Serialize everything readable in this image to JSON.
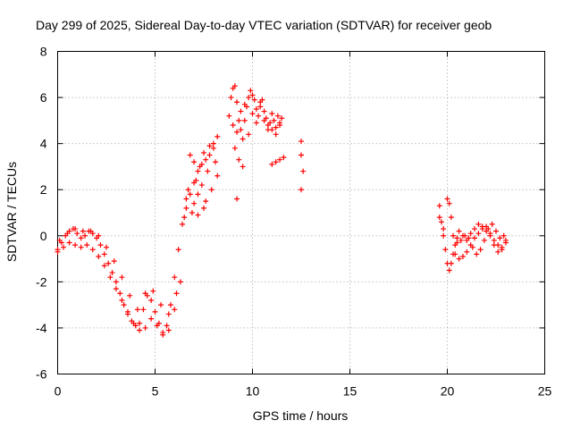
{
  "chart_data": {
    "type": "scatter",
    "title": "Day 299 of 2025, Sidereal Day-to-day VTEC variation (SDTVAR) for receiver geob",
    "xlabel": "GPS time / hours",
    "ylabel": "SDTVAR / TECUs",
    "xlim": [
      0,
      25
    ],
    "ylim": [
      -6,
      8
    ],
    "xticks": [
      "0",
      "5",
      "10",
      "15",
      "20",
      "25"
    ],
    "yticks": [
      "-6",
      "-4",
      "-2",
      "0",
      "2",
      "4",
      "6",
      "8"
    ],
    "grid": true,
    "marker": "+",
    "color": "#ff0000",
    "series": [
      {
        "name": "main-trace",
        "x": [
          0.0,
          0.2,
          0.4,
          0.6,
          0.8,
          1.0,
          1.2,
          1.4,
          1.6,
          1.8,
          2.0,
          2.2,
          2.4,
          2.6,
          2.8,
          3.0,
          3.2,
          3.4,
          3.6,
          3.8,
          4.0,
          4.2,
          4.4,
          4.6,
          4.8,
          5.0,
          5.2,
          5.4,
          5.6,
          5.8,
          6.0,
          6.2,
          6.4,
          6.6,
          6.8,
          7.0,
          7.2,
          7.4,
          7.6,
          7.8,
          8.0
        ],
        "y": [
          -0.6,
          -0.3,
          0.0,
          0.2,
          0.3,
          0.1,
          -0.1,
          0.0,
          0.2,
          0.1,
          -0.1,
          -0.4,
          -0.8,
          -1.2,
          -1.6,
          -2.0,
          -2.5,
          -3.0,
          -3.4,
          -3.7,
          -3.9,
          -3.8,
          -3.2,
          -2.6,
          -2.8,
          -3.3,
          -3.8,
          -4.2,
          -3.9,
          -3.0,
          -1.8,
          -0.6,
          0.5,
          1.2,
          1.8,
          2.3,
          2.8,
          3.1,
          3.3,
          3.5,
          3.8
        ]
      },
      {
        "name": "lower-band",
        "x": [
          0.0,
          0.3,
          0.6,
          0.9,
          1.2,
          1.5,
          1.8,
          2.1,
          2.4,
          2.7,
          3.0,
          3.3,
          3.6,
          3.9,
          4.2,
          4.5,
          4.8,
          5.1,
          5.4,
          5.7,
          6.0,
          6.3
        ],
        "y": [
          -0.7,
          -0.5,
          -0.3,
          -0.4,
          -0.5,
          -0.4,
          -0.6,
          -0.9,
          -1.3,
          -1.8,
          -2.3,
          -2.8,
          -3.3,
          -3.8,
          -4.1,
          -4.0,
          -3.6,
          -3.9,
          -4.3,
          -4.1,
          -3.2,
          -2.0
        ]
      },
      {
        "name": "upper-band",
        "x": [
          0.1,
          0.5,
          0.9,
          1.3,
          1.7,
          2.1,
          2.5,
          2.9,
          3.3,
          3.7,
          4.1,
          4.5,
          4.9,
          5.3,
          5.7,
          6.1
        ],
        "y": [
          -0.2,
          0.1,
          0.3,
          0.2,
          0.2,
          0.0,
          -0.5,
          -1.1,
          -1.8,
          -2.6,
          -3.2,
          -2.5,
          -2.4,
          -3.0,
          -3.4,
          -2.5
        ]
      },
      {
        "name": "rise-scatter",
        "x": [
          6.5,
          6.6,
          6.7,
          6.8,
          6.9,
          7.0,
          7.1,
          7.2,
          7.3,
          7.4,
          7.5,
          7.6,
          7.7,
          7.8,
          7.9,
          8.0,
          8.1,
          8.2,
          8.2,
          7.0,
          7.2,
          7.5
        ],
        "y": [
          0.8,
          1.6,
          2.0,
          3.5,
          1.0,
          1.4,
          2.4,
          1.8,
          3.0,
          2.2,
          3.6,
          1.5,
          2.8,
          3.9,
          2.0,
          4.0,
          3.2,
          4.3,
          2.6,
          3.2,
          0.9,
          1.2
        ]
      },
      {
        "name": "peak-cluster",
        "x": [
          8.8,
          8.9,
          9.0,
          9.1,
          9.2,
          9.3,
          9.4,
          9.5,
          9.6,
          9.7,
          9.8,
          9.9,
          10.0,
          10.1,
          10.2,
          10.3,
          10.4,
          10.5,
          10.6,
          10.7,
          10.8,
          10.9,
          11.0,
          11.1,
          11.2,
          11.3,
          11.4,
          11.5,
          9.0,
          9.2,
          9.4,
          9.6,
          9.8,
          10.0,
          10.2,
          10.4,
          10.6,
          10.8,
          11.0,
          11.2,
          11.4,
          9.1,
          9.3,
          9.2,
          9.5
        ],
        "y": [
          5.2,
          6.0,
          6.4,
          6.5,
          5.8,
          5.0,
          4.6,
          4.2,
          5.0,
          5.6,
          6.0,
          6.3,
          6.1,
          5.9,
          5.5,
          5.2,
          5.6,
          5.9,
          5.4,
          5.1,
          4.8,
          4.9,
          5.3,
          5.0,
          4.7,
          5.2,
          4.9,
          5.1,
          4.8,
          4.5,
          5.4,
          5.7,
          4.4,
          5.3,
          4.9,
          5.8,
          5.0,
          4.6,
          4.6,
          4.4,
          4.8,
          3.8,
          3.3,
          1.6,
          3.0
        ]
      },
      {
        "name": "late-scatter",
        "x": [
          11.0,
          11.2,
          11.4,
          11.6,
          12.5,
          12.5,
          12.6,
          12.5
        ],
        "y": [
          3.1,
          3.2,
          3.3,
          3.4,
          4.1,
          3.5,
          2.8,
          2.0
        ]
      },
      {
        "name": "evening-trace-1",
        "x": [
          19.6,
          19.7,
          19.8,
          19.9,
          20.0,
          20.1,
          20.2,
          20.3,
          20.4,
          20.5,
          20.6,
          20.8,
          21.0,
          21.2,
          21.4,
          21.6,
          21.8,
          22.0,
          22.2,
          22.4,
          22.6,
          22.8,
          23.0
        ],
        "y": [
          1.3,
          0.6,
          0.0,
          -0.6,
          -1.2,
          -1.5,
          -1.2,
          -0.8,
          -0.4,
          -0.1,
          0.2,
          0.0,
          -0.2,
          0.1,
          0.3,
          0.5,
          0.4,
          0.2,
          0.0,
          -0.2,
          -0.4,
          -0.5,
          -0.3
        ]
      },
      {
        "name": "evening-trace-2",
        "x": [
          19.6,
          19.8,
          20.0,
          20.1,
          20.2,
          20.3,
          20.4,
          20.6,
          20.8,
          21.0,
          21.2,
          21.4,
          21.6,
          21.8,
          22.0,
          22.2,
          22.4,
          22.6,
          22.8,
          23.0
        ],
        "y": [
          0.8,
          0.3,
          1.6,
          1.4,
          0.8,
          0.0,
          -0.8,
          -1.0,
          -0.9,
          -0.7,
          -0.4,
          -0.1,
          0.1,
          0.3,
          0.4,
          0.1,
          -0.4,
          -0.7,
          -0.6,
          -0.2
        ]
      },
      {
        "name": "evening-trace-3",
        "x": [
          20.5,
          20.7,
          20.9,
          21.1,
          21.3,
          21.5,
          21.7,
          21.9,
          22.1,
          22.3,
          22.5,
          22.7,
          22.9
        ],
        "y": [
          -0.3,
          -0.2,
          0.0,
          -0.1,
          -0.5,
          -0.8,
          -0.6,
          -0.2,
          0.3,
          0.5,
          0.2,
          -0.1,
          0.0
        ]
      }
    ]
  }
}
